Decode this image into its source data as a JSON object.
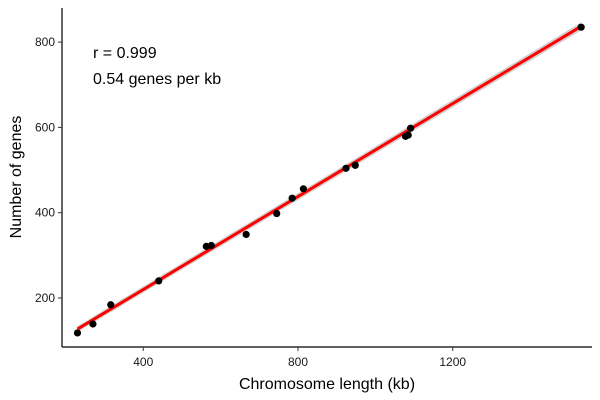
{
  "chart_data": {
    "type": "scatter",
    "title": "",
    "xlabel": "Chromosome length (kb)",
    "ylabel": "Number of genes",
    "xlim": [
      190,
      1560
    ],
    "ylim": [
      85,
      880
    ],
    "x_ticks": [
      400,
      800,
      1200
    ],
    "y_ticks": [
      200,
      400,
      600,
      800
    ],
    "grid": false,
    "legend": "none",
    "annotations": [
      "r = 0.999",
      "0.54 genes per kb"
    ],
    "series": [
      {
        "x": [
          230,
          270,
          316,
          440,
          563,
          576,
          666,
          745,
          785,
          814,
          924,
          948,
          1078,
          1085,
          1091,
          1532
        ],
        "y": [
          118,
          139,
          184,
          240,
          321,
          323,
          349,
          398,
          434,
          456,
          504,
          511,
          579,
          582,
          598,
          835
        ]
      }
    ],
    "fit": {
      "x": [
        230,
        1532
      ],
      "y": [
        127,
        837
      ],
      "color": "#ff0000",
      "band_color": "#c8c8c8"
    },
    "point_color": "#000000"
  }
}
